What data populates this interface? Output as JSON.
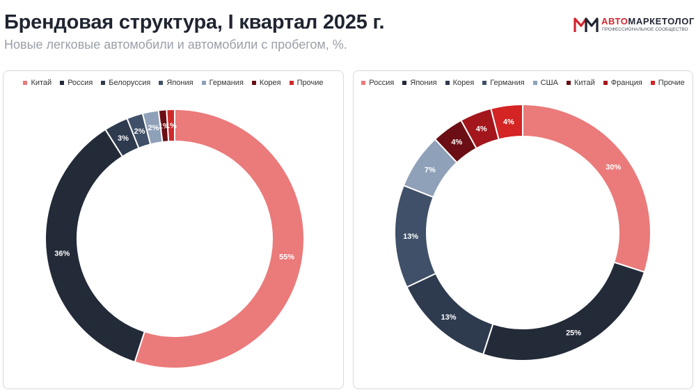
{
  "header": {
    "title": "Брендовая структура, I квартал 2025 г.",
    "subtitle": "Новые легковые автомобили и автомобили с пробегом, %."
  },
  "logo": {
    "name_accent": "АВТО",
    "name_main": "МАРКЕТОЛОГ",
    "tagline": "ПРОФЕССИОНАЛЬНОЕ СООБЩЕСТВО"
  },
  "chart_data": [
    {
      "type": "pie",
      "variant": "donut",
      "legend_position": "top",
      "categories": [
        "Китай",
        "Россия",
        "Белоруссия",
        "Япония",
        "Германия",
        "Корея",
        "Прочие"
      ],
      "values": [
        55,
        36,
        3,
        2,
        2,
        1,
        1
      ],
      "labels": [
        "55%",
        "36%",
        "3%",
        "2%",
        "2%",
        "1%",
        "1%"
      ],
      "colors": [
        "#eb7a7a",
        "#232a38",
        "#2e3a4e",
        "#3f5068",
        "#8fa1b8",
        "#6b0f14",
        "#cf2a2a"
      ]
    },
    {
      "type": "pie",
      "variant": "donut",
      "legend_position": "top",
      "categories": [
        "Россия",
        "Япония",
        "Корея",
        "Германия",
        "США",
        "Китай",
        "Франция",
        "Прочие"
      ],
      "values": [
        30,
        25,
        13,
        13,
        7,
        4,
        4,
        4
      ],
      "labels": [
        "30%",
        "25%",
        "13%",
        "13%",
        "7%",
        "4%",
        "4%",
        "4%"
      ],
      "colors": [
        "#eb7a7a",
        "#232a38",
        "#2e3a4e",
        "#3f5068",
        "#8fa1b8",
        "#6b0f14",
        "#a3161c",
        "#d42424"
      ]
    }
  ]
}
